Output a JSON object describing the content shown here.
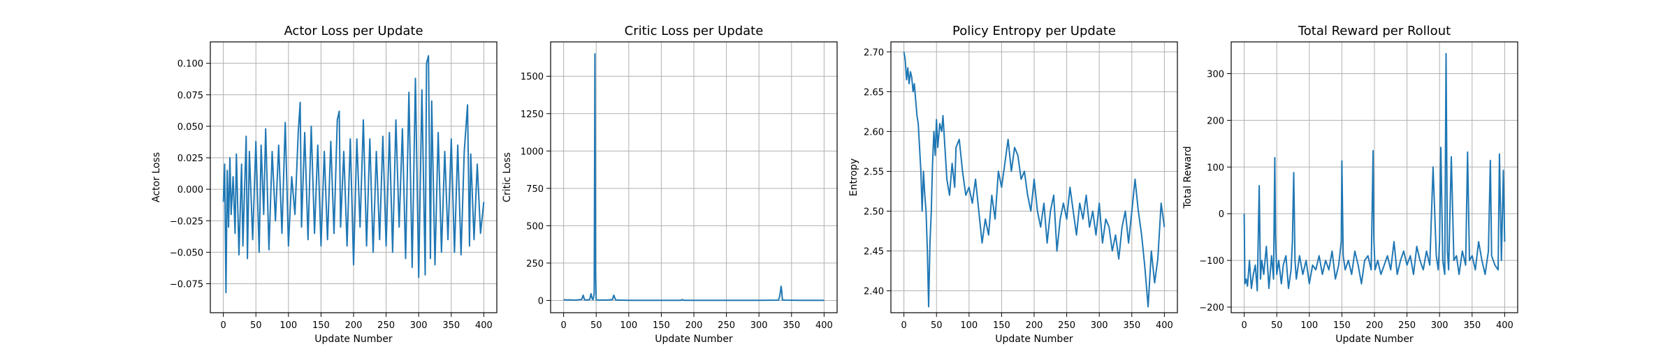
{
  "chart_data": [
    {
      "type": "line",
      "title": "Actor Loss per Update",
      "xlabel": "Update Number",
      "ylabel": "Actor Loss",
      "xlim": [
        -20,
        420
      ],
      "ylim": [
        -0.098,
        0.117
      ],
      "xticks": [
        0,
        50,
        100,
        150,
        200,
        250,
        300,
        350,
        400
      ],
      "yticks": [
        -0.075,
        -0.05,
        -0.025,
        0.0,
        0.025,
        0.05,
        0.075,
        0.1
      ],
      "ytick_labels": [
        "−0.075",
        "−0.050",
        "−0.025",
        "0.000",
        "0.025",
        "0.050",
        "0.075",
        "0.100"
      ],
      "grid": true,
      "color": "#1f77b4",
      "series": [
        {
          "x": [
            0,
            2,
            4,
            6,
            8,
            10,
            12,
            15,
            18,
            20,
            24,
            28,
            30,
            35,
            37,
            40,
            45,
            50,
            55,
            58,
            62,
            65,
            70,
            75,
            80,
            85,
            90,
            95,
            100,
            105,
            110,
            115,
            118,
            120,
            125,
            130,
            135,
            140,
            145,
            150,
            155,
            160,
            165,
            170,
            175,
            178,
            180,
            185,
            190,
            195,
            200,
            205,
            210,
            215,
            220,
            225,
            230,
            235,
            240,
            245,
            250,
            255,
            260,
            265,
            270,
            275,
            280,
            285,
            290,
            295,
            300,
            305,
            310,
            312,
            315,
            318,
            320,
            325,
            330,
            335,
            340,
            345,
            350,
            355,
            360,
            365,
            370,
            375,
            378,
            380,
            385,
            390,
            395,
            400
          ],
          "y": [
            -0.01,
            0.02,
            -0.082,
            0.015,
            -0.03,
            0.025,
            -0.02,
            0.01,
            -0.035,
            0.028,
            -0.052,
            0.02,
            -0.045,
            0.042,
            -0.055,
            0.03,
            -0.04,
            0.038,
            -0.05,
            0.035,
            -0.02,
            0.048,
            -0.048,
            0.03,
            -0.025,
            0.035,
            -0.035,
            0.053,
            -0.045,
            0.01,
            -0.02,
            0.045,
            0.069,
            -0.03,
            0.045,
            -0.04,
            0.05,
            -0.035,
            0.035,
            -0.045,
            0.03,
            -0.04,
            0.038,
            -0.035,
            0.055,
            0.062,
            -0.03,
            0.03,
            -0.045,
            0.04,
            -0.06,
            0.04,
            -0.03,
            0.055,
            -0.045,
            0.04,
            -0.05,
            0.03,
            -0.04,
            0.042,
            -0.045,
            0.045,
            -0.05,
            0.055,
            -0.03,
            0.048,
            -0.055,
            0.077,
            -0.062,
            0.088,
            -0.07,
            0.079,
            -0.068,
            0.1,
            0.106,
            -0.055,
            0.07,
            -0.06,
            0.045,
            -0.05,
            0.03,
            -0.04,
            0.04,
            -0.05,
            0.035,
            -0.052,
            0.03,
            0.067,
            -0.045,
            0.028,
            -0.04,
            0.02,
            -0.035,
            -0.01
          ]
        }
      ]
    },
    {
      "type": "line",
      "title": "Critic Loss per Update",
      "xlabel": "Update Number",
      "ylabel": "Critic Loss",
      "xlim": [
        -20,
        420
      ],
      "ylim": [
        -82,
        1730
      ],
      "xticks": [
        0,
        50,
        100,
        150,
        200,
        250,
        300,
        350,
        400
      ],
      "yticks": [
        0,
        250,
        500,
        750,
        1000,
        1250,
        1500
      ],
      "ytick_labels": [
        "0",
        "250",
        "500",
        "750",
        "1000",
        "1250",
        "1500"
      ],
      "grid": true,
      "color": "#1f77b4",
      "series": [
        {
          "x": [
            0,
            5,
            10,
            15,
            20,
            25,
            28,
            30,
            32,
            35,
            40,
            42,
            44,
            45,
            46,
            47,
            48,
            49,
            50,
            52,
            55,
            60,
            65,
            70,
            75,
            77,
            79,
            80,
            85,
            90,
            100,
            120,
            150,
            180,
            182,
            185,
            200,
            250,
            300,
            330,
            332,
            334,
            335,
            336,
            338,
            340,
            360,
            380,
            400
          ],
          "y": [
            5,
            3,
            4,
            2,
            3,
            5,
            8,
            35,
            5,
            3,
            6,
            45,
            10,
            5,
            20,
            50,
            1650,
            200,
            4,
            3,
            2,
            3,
            2,
            4,
            6,
            35,
            12,
            3,
            2,
            2,
            1,
            1,
            1,
            1,
            6,
            1,
            1,
            1,
            1,
            2,
            30,
            95,
            60,
            5,
            3,
            2,
            1,
            1,
            1
          ]
        }
      ]
    },
    {
      "type": "line",
      "title": "Policy Entropy per Update",
      "xlabel": "Update Number",
      "ylabel": "Entropy",
      "xlim": [
        -20,
        420
      ],
      "ylim": [
        2.3725,
        2.7125
      ],
      "xticks": [
        0,
        50,
        100,
        150,
        200,
        250,
        300,
        350,
        400
      ],
      "yticks": [
        2.4,
        2.45,
        2.5,
        2.55,
        2.6,
        2.65,
        2.7
      ],
      "ytick_labels": [
        "2.40",
        "2.45",
        "2.50",
        "2.55",
        "2.60",
        "2.65",
        "2.70"
      ],
      "grid": true,
      "color": "#1f77b4",
      "series": [
        {
          "x": [
            0,
            2,
            4,
            6,
            8,
            10,
            12,
            14,
            16,
            18,
            20,
            22,
            24,
            26,
            28,
            30,
            32,
            34,
            36,
            38,
            40,
            42,
            44,
            46,
            48,
            50,
            52,
            55,
            58,
            60,
            63,
            66,
            70,
            74,
            78,
            80,
            85,
            90,
            95,
            100,
            105,
            110,
            115,
            120,
            125,
            130,
            135,
            140,
            145,
            150,
            155,
            160,
            165,
            170,
            175,
            180,
            185,
            190,
            195,
            200,
            205,
            210,
            215,
            220,
            225,
            230,
            235,
            240,
            245,
            250,
            255,
            260,
            265,
            270,
            275,
            280,
            285,
            290,
            295,
            300,
            305,
            310,
            315,
            320,
            325,
            330,
            335,
            340,
            345,
            350,
            355,
            360,
            365,
            370,
            375,
            380,
            385,
            390,
            395,
            400
          ],
          "y": [
            2.7,
            2.69,
            2.665,
            2.68,
            2.66,
            2.675,
            2.668,
            2.65,
            2.66,
            2.64,
            2.62,
            2.61,
            2.58,
            2.55,
            2.5,
            2.55,
            2.52,
            2.5,
            2.45,
            2.38,
            2.46,
            2.5,
            2.56,
            2.6,
            2.57,
            2.615,
            2.58,
            2.61,
            2.6,
            2.62,
            2.58,
            2.54,
            2.52,
            2.56,
            2.53,
            2.58,
            2.59,
            2.55,
            2.52,
            2.53,
            2.51,
            2.54,
            2.5,
            2.46,
            2.49,
            2.47,
            2.52,
            2.49,
            2.55,
            2.53,
            2.56,
            2.59,
            2.55,
            2.58,
            2.57,
            2.54,
            2.55,
            2.52,
            2.5,
            2.54,
            2.5,
            2.48,
            2.51,
            2.46,
            2.5,
            2.52,
            2.45,
            2.49,
            2.51,
            2.49,
            2.53,
            2.5,
            2.47,
            2.51,
            2.49,
            2.52,
            2.48,
            2.5,
            2.47,
            2.51,
            2.46,
            2.49,
            2.48,
            2.45,
            2.47,
            2.44,
            2.48,
            2.5,
            2.46,
            2.5,
            2.54,
            2.5,
            2.47,
            2.43,
            2.38,
            2.45,
            2.41,
            2.44,
            2.51,
            2.48
          ]
        }
      ]
    },
    {
      "type": "line",
      "title": "Total Reward per Rollout",
      "xlabel": "Update Number",
      "ylabel": "Total Reward",
      "xlim": [
        -20,
        420
      ],
      "ylim": [
        -212,
        368
      ],
      "xticks": [
        0,
        50,
        100,
        150,
        200,
        250,
        300,
        350,
        400
      ],
      "yticks": [
        -200,
        -100,
        0,
        100,
        200,
        300
      ],
      "ytick_labels": [
        "−200",
        "−100",
        "0",
        "100",
        "200",
        "300"
      ],
      "grid": true,
      "color": "#1f77b4",
      "series": [
        {
          "x": [
            0,
            1,
            3,
            5,
            8,
            11,
            14,
            17,
            20,
            23,
            25,
            27,
            30,
            34,
            38,
            42,
            45,
            47,
            48,
            50,
            53,
            57,
            60,
            64,
            68,
            72,
            74,
            76,
            78,
            80,
            85,
            90,
            95,
            100,
            105,
            110,
            115,
            120,
            125,
            130,
            135,
            140,
            145,
            149,
            150,
            152,
            155,
            160,
            165,
            170,
            175,
            180,
            185,
            190,
            195,
            198,
            199,
            201,
            205,
            210,
            215,
            220,
            225,
            230,
            235,
            240,
            245,
            250,
            255,
            260,
            265,
            270,
            275,
            280,
            285,
            290,
            295,
            298,
            300,
            302,
            305,
            308,
            310,
            312,
            314,
            318,
            322,
            326,
            330,
            335,
            340,
            343,
            346,
            350,
            355,
            360,
            365,
            370,
            375,
            378,
            380,
            385,
            390,
            392,
            395,
            398,
            400
          ],
          "y": [
            0,
            -150,
            -140,
            -155,
            -100,
            -160,
            -130,
            -110,
            -165,
            60,
            -140,
            -100,
            -130,
            -70,
            -160,
            -90,
            -140,
            120,
            -50,
            -130,
            -100,
            -150,
            -110,
            -90,
            -160,
            -120,
            -60,
            88,
            -100,
            -140,
            -90,
            -130,
            -100,
            -150,
            -110,
            -120,
            -90,
            -130,
            -100,
            -120,
            -80,
            -140,
            -110,
            -60,
            113,
            -90,
            -120,
            -100,
            -130,
            -80,
            -110,
            -150,
            -100,
            -90,
            -120,
            135,
            -50,
            -120,
            -100,
            -130,
            -110,
            -90,
            -120,
            -60,
            -130,
            -100,
            -80,
            -110,
            -90,
            -130,
            -70,
            -100,
            -120,
            -80,
            -110,
            100,
            -90,
            -120,
            -60,
            142,
            -100,
            -130,
            343,
            -80,
            -120,
            122,
            -100,
            -90,
            -130,
            -80,
            -110,
            132,
            -100,
            -90,
            -120,
            -60,
            -100,
            -130,
            -80,
            114,
            -90,
            -110,
            -120,
            128,
            -100,
            93,
            -60
          ]
        }
      ]
    }
  ]
}
